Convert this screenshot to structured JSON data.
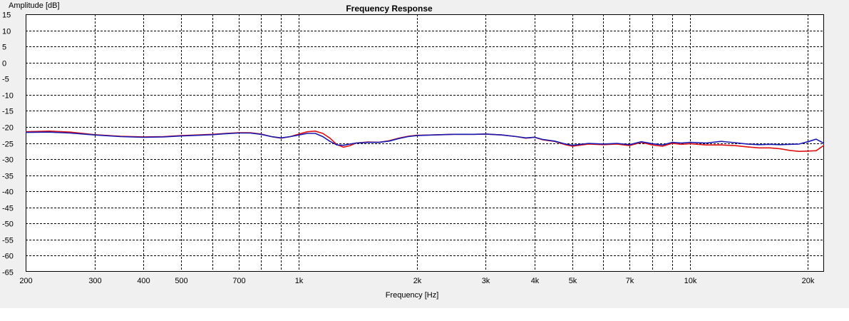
{
  "chart_data": {
    "type": "line",
    "title": "Frequency Response",
    "xlabel": "Frequency [Hz]",
    "ylabel": "Amplitude [dB]",
    "x_scale": "log",
    "xlim": [
      200,
      22000
    ],
    "ylim": [
      -65,
      15
    ],
    "grid": true,
    "x_ticks": [
      {
        "value": 200,
        "label": "200"
      },
      {
        "value": 300,
        "label": "300"
      },
      {
        "value": 400,
        "label": "400"
      },
      {
        "value": 500,
        "label": "500"
      },
      {
        "value": 600,
        "label": ""
      },
      {
        "value": 700,
        "label": "700"
      },
      {
        "value": 800,
        "label": ""
      },
      {
        "value": 900,
        "label": ""
      },
      {
        "value": 1000,
        "label": "1k"
      },
      {
        "value": 2000,
        "label": "2k"
      },
      {
        "value": 3000,
        "label": "3k"
      },
      {
        "value": 4000,
        "label": "4k"
      },
      {
        "value": 5000,
        "label": "5k"
      },
      {
        "value": 6000,
        "label": ""
      },
      {
        "value": 7000,
        "label": "7k"
      },
      {
        "value": 8000,
        "label": ""
      },
      {
        "value": 9000,
        "label": ""
      },
      {
        "value": 10000,
        "label": "10k"
      },
      {
        "value": 20000,
        "label": "20k"
      }
    ],
    "y_ticks": [
      15,
      10,
      5,
      0,
      -5,
      -10,
      -15,
      -20,
      -25,
      -30,
      -35,
      -40,
      -45,
      -50,
      -55,
      -60,
      -65
    ],
    "series": [
      {
        "color": "#e01010",
        "x": [
          200,
          230,
          260,
          300,
          350,
          400,
          450,
          500,
          550,
          600,
          650,
          700,
          750,
          800,
          850,
          900,
          950,
          1000,
          1050,
          1100,
          1150,
          1200,
          1250,
          1300,
          1350,
          1400,
          1500,
          1600,
          1700,
          1800,
          1900,
          2000,
          2200,
          2500,
          2800,
          3000,
          3300,
          3600,
          3800,
          4000,
          4200,
          4500,
          4800,
          5000,
          5500,
          6000,
          6500,
          7000,
          7500,
          8000,
          8500,
          9000,
          9500,
          10000,
          11000,
          12000,
          13000,
          14000,
          15000,
          16000,
          17000,
          18000,
          19000,
          20000,
          21000,
          22000
        ],
        "values": [
          -21.5,
          -21.3,
          -21.6,
          -22.4,
          -22.9,
          -23.1,
          -23.0,
          -22.7,
          -22.5,
          -22.3,
          -22.0,
          -21.8,
          -21.8,
          -22.2,
          -23.0,
          -23.5,
          -23.0,
          -22.2,
          -21.5,
          -21.3,
          -22.0,
          -23.5,
          -25.5,
          -26.3,
          -25.8,
          -25.0,
          -24.7,
          -24.8,
          -24.3,
          -23.5,
          -22.9,
          -22.6,
          -22.5,
          -22.3,
          -22.3,
          -22.2,
          -22.5,
          -23.0,
          -23.5,
          -23.2,
          -24.0,
          -24.5,
          -25.5,
          -26.0,
          -25.3,
          -25.5,
          -25.3,
          -25.8,
          -24.8,
          -25.6,
          -26.0,
          -25.1,
          -25.4,
          -25.2,
          -25.6,
          -25.6,
          -25.8,
          -26.2,
          -26.5,
          -26.5,
          -26.8,
          -27.3,
          -27.6,
          -27.5,
          -27.4,
          -25.7
        ]
      },
      {
        "color": "#1a1ab0",
        "x": [
          200,
          230,
          260,
          300,
          350,
          400,
          450,
          500,
          550,
          600,
          650,
          700,
          750,
          800,
          850,
          900,
          950,
          1000,
          1050,
          1100,
          1150,
          1200,
          1250,
          1300,
          1350,
          1400,
          1500,
          1600,
          1700,
          1800,
          1900,
          2000,
          2200,
          2500,
          2800,
          3000,
          3300,
          3600,
          3800,
          4000,
          4200,
          4500,
          4800,
          5000,
          5500,
          6000,
          6500,
          7000,
          7500,
          8000,
          8500,
          9000,
          9500,
          10000,
          11000,
          12000,
          13000,
          14000,
          15000,
          16000,
          17000,
          18000,
          19000,
          20000,
          21000,
          22000
        ],
        "values": [
          -21.7,
          -21.6,
          -21.9,
          -22.5,
          -23.0,
          -23.2,
          -23.1,
          -22.8,
          -22.6,
          -22.4,
          -22.1,
          -21.9,
          -21.9,
          -22.3,
          -23.0,
          -23.4,
          -23.0,
          -22.5,
          -22.0,
          -22.0,
          -23.0,
          -24.5,
          -25.6,
          -25.7,
          -25.3,
          -25.0,
          -24.8,
          -24.8,
          -24.4,
          -23.6,
          -23.0,
          -22.7,
          -22.5,
          -22.3,
          -22.3,
          -22.2,
          -22.5,
          -23.0,
          -23.4,
          -23.2,
          -23.9,
          -24.4,
          -25.3,
          -25.7,
          -25.1,
          -25.3,
          -25.1,
          -25.5,
          -24.6,
          -25.2,
          -25.6,
          -24.8,
          -25.0,
          -24.8,
          -25.0,
          -24.5,
          -24.9,
          -25.3,
          -25.5,
          -25.4,
          -25.5,
          -25.4,
          -25.3,
          -24.6,
          -23.8,
          -25.1
        ]
      }
    ]
  }
}
